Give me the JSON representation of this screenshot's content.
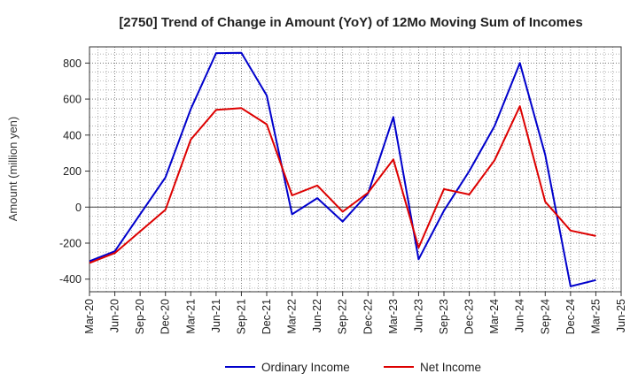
{
  "chart_data": {
    "type": "line",
    "title": "[2750]  Trend of Change in Amount (YoY) of 12Mo Moving Sum of Incomes",
    "xlabel": "",
    "ylabel": "Amount (million yen)",
    "categories": [
      "Mar-20",
      "Jun-20",
      "Sep-20",
      "Dec-20",
      "Mar-21",
      "Jun-21",
      "Sep-21",
      "Dec-21",
      "Mar-22",
      "Jun-22",
      "Sep-22",
      "Dec-22",
      "Mar-23",
      "Jun-23",
      "Sep-23",
      "Dec-23",
      "Mar-24",
      "Jun-24",
      "Sep-24",
      "Dec-24",
      "Mar-25",
      "Jun-25"
    ],
    "yticks": [
      -400,
      -200,
      0,
      200,
      400,
      600,
      800
    ],
    "ylim": [
      -470,
      890
    ],
    "grid": true,
    "legend_position": "bottom",
    "series": [
      {
        "name": "Ordinary Income",
        "color": "#0000cc",
        "values": [
          -300,
          -245,
          -40,
          165,
          545,
          855,
          857,
          620,
          -40,
          50,
          -80,
          75,
          500,
          -290,
          -20,
          200,
          450,
          800,
          290,
          -440,
          -405,
          null
        ]
      },
      {
        "name": "Net Income",
        "color": "#dd0000",
        "values": [
          -310,
          -255,
          -135,
          -15,
          375,
          540,
          550,
          460,
          65,
          120,
          -25,
          80,
          265,
          -225,
          100,
          70,
          260,
          560,
          30,
          -130,
          -160,
          null
        ]
      }
    ]
  }
}
